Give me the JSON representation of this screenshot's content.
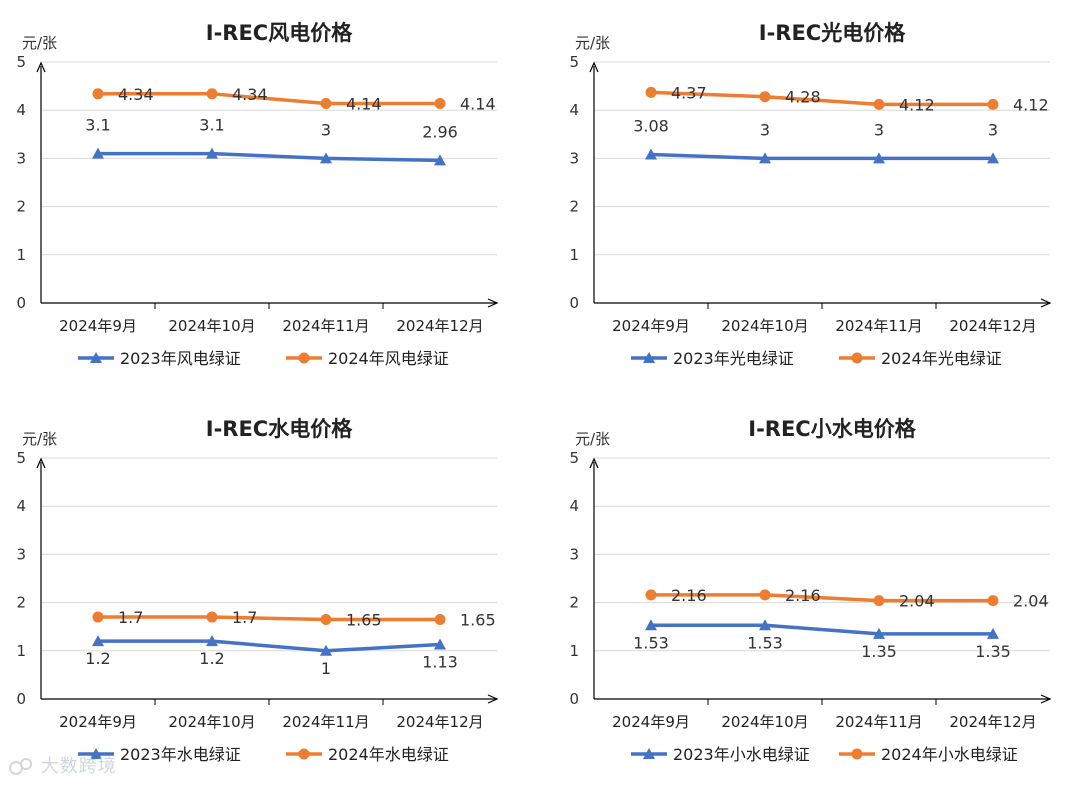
{
  "colors": {
    "s2023": "#4472C4",
    "s2024": "#ED7D31",
    "grid": "#d9d9d9",
    "axis": "#000000",
    "text": "#333333"
  },
  "watermark": {
    "text": "大数跨境"
  },
  "chart_data": [
    {
      "type": "line",
      "title": "I-REC风电价格",
      "ylabel": "元/张",
      "ylim": [
        0,
        5
      ],
      "yticks": [
        0,
        1,
        2,
        3,
        4,
        5
      ],
      "categories": [
        "2024年9月",
        "2024年10月",
        "2024年11月",
        "2024年12月"
      ],
      "series": [
        {
          "name": "2023年风电绿证",
          "values": [
            3.1,
            3.1,
            3,
            2.96
          ],
          "labels": [
            "3.1",
            "3.1",
            "3",
            "2.96"
          ],
          "marker": "triangle",
          "color": "#4472C4",
          "label_pos": "above"
        },
        {
          "name": "2024年风电绿证",
          "values": [
            4.34,
            4.34,
            4.14,
            4.14
          ],
          "labels": [
            "4.34",
            "4.34",
            "4.14",
            "4.14"
          ],
          "marker": "circle",
          "color": "#ED7D31",
          "label_pos": "right"
        }
      ],
      "legend": "bottom"
    },
    {
      "type": "line",
      "title": "I-REC光电价格",
      "ylabel": "元/张",
      "ylim": [
        0,
        5
      ],
      "yticks": [
        0,
        1,
        2,
        3,
        4,
        5
      ],
      "categories": [
        "2024年9月",
        "2024年10月",
        "2024年11月",
        "2024年12月"
      ],
      "series": [
        {
          "name": "2023年光电绿证",
          "values": [
            3.08,
            3,
            3,
            3
          ],
          "labels": [
            "3.08",
            "3",
            "3",
            "3"
          ],
          "marker": "triangle",
          "color": "#4472C4",
          "label_pos": "above"
        },
        {
          "name": "2024年光电绿证",
          "values": [
            4.37,
            4.28,
            4.12,
            4.12
          ],
          "labels": [
            "4.37",
            "4.28",
            "4.12",
            "4.12"
          ],
          "marker": "circle",
          "color": "#ED7D31",
          "label_pos": "right"
        }
      ],
      "legend": "bottom"
    },
    {
      "type": "line",
      "title": "I-REC水电价格",
      "ylabel": "元/张",
      "ylim": [
        0,
        5
      ],
      "yticks": [
        0,
        1,
        2,
        3,
        4,
        5
      ],
      "categories": [
        "2024年9月",
        "2024年10月",
        "2024年11月",
        "2024年12月"
      ],
      "series": [
        {
          "name": "2023年水电绿证",
          "values": [
            1.2,
            1.2,
            1,
            1.13
          ],
          "labels": [
            "1.2",
            "1.2",
            "1",
            "1.13"
          ],
          "marker": "triangle",
          "color": "#4472C4",
          "label_pos": "below"
        },
        {
          "name": "2024年水电绿证",
          "values": [
            1.7,
            1.7,
            1.65,
            1.65
          ],
          "labels": [
            "1.7",
            "1.7",
            "1.65",
            "1.65"
          ],
          "marker": "circle",
          "color": "#ED7D31",
          "label_pos": "right"
        }
      ],
      "legend": "bottom"
    },
    {
      "type": "line",
      "title": "I-REC小水电价格",
      "ylabel": "元/张",
      "ylim": [
        0,
        5
      ],
      "yticks": [
        0,
        1,
        2,
        3,
        4,
        5
      ],
      "categories": [
        "2024年9月",
        "2024年10月",
        "2024年11月",
        "2024年12月"
      ],
      "series": [
        {
          "name": "2023年小水电绿证",
          "values": [
            1.53,
            1.53,
            1.35,
            1.35
          ],
          "labels": [
            "1.53",
            "1.53",
            "1.35",
            "1.35"
          ],
          "marker": "triangle",
          "color": "#4472C4",
          "label_pos": "below"
        },
        {
          "name": "2024年小水电绿证",
          "values": [
            2.16,
            2.16,
            2.04,
            2.04
          ],
          "labels": [
            "2.16",
            "2.16",
            "2.04",
            "2.04"
          ],
          "marker": "circle",
          "color": "#ED7D31",
          "label_pos": "right"
        }
      ],
      "legend": "bottom"
    }
  ]
}
